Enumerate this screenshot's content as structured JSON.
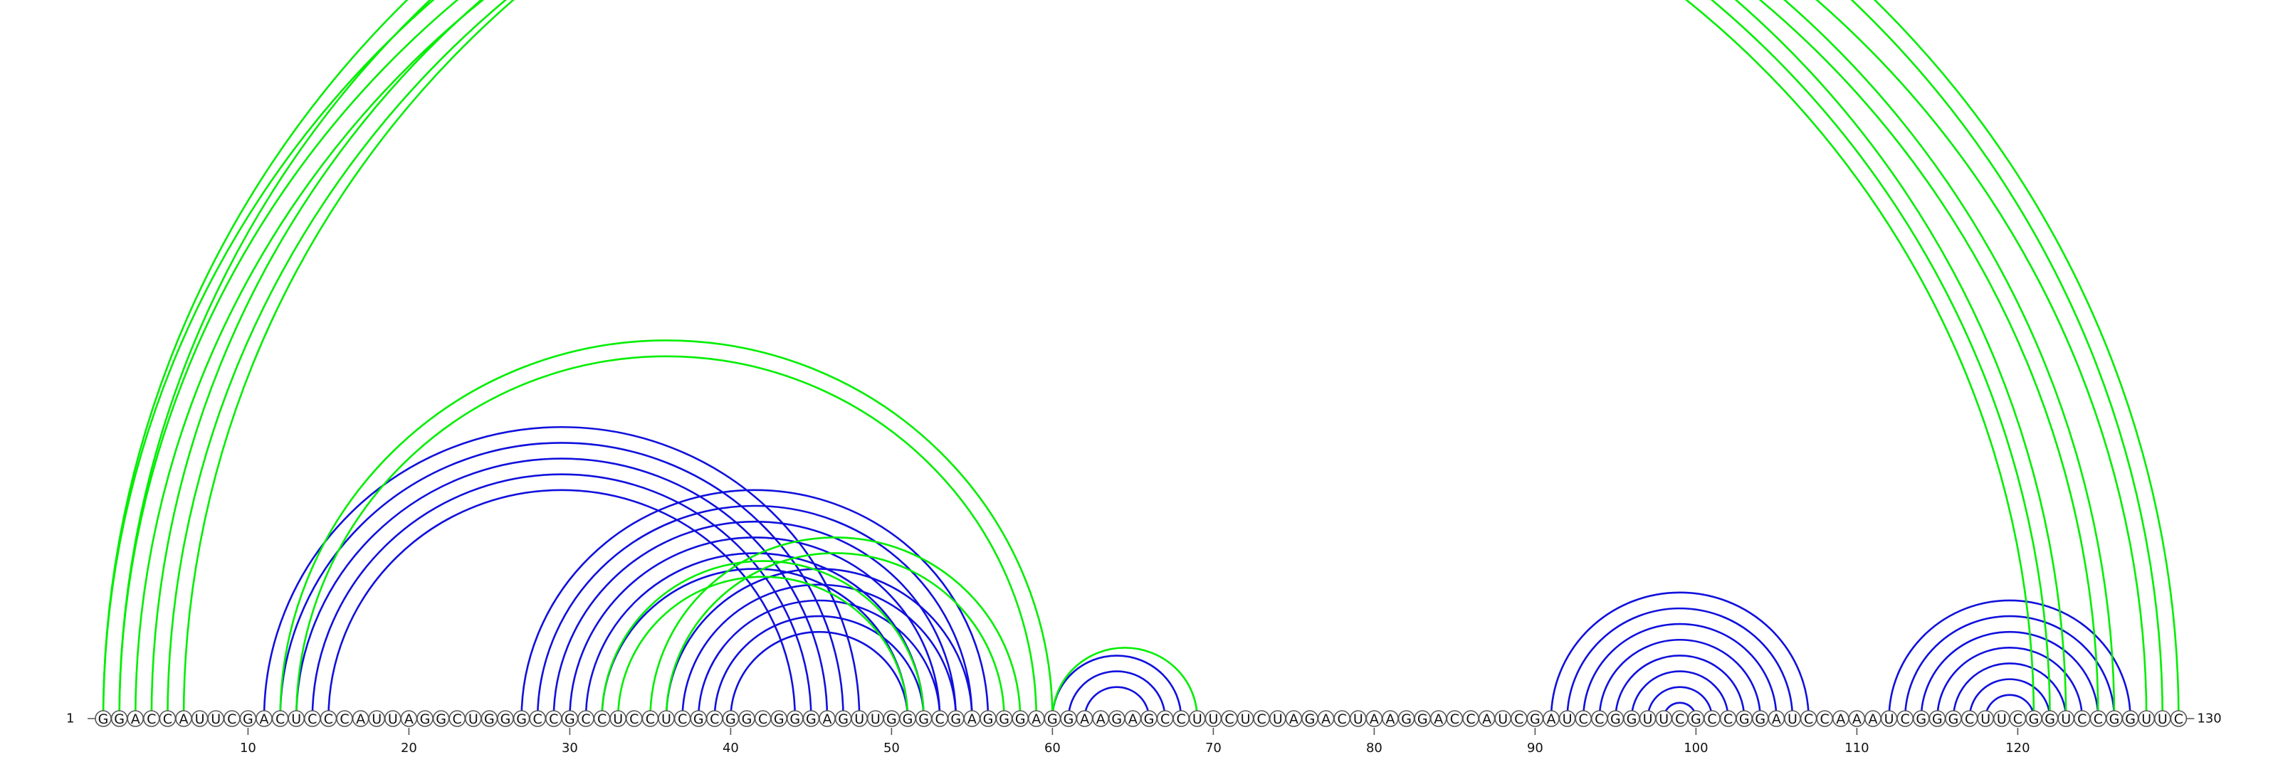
{
  "sequence": "GGACCAUUCGACUCCCAUUAGGCUGGGCCGCCUCCUCGCGGCGGGAGUUGGGCGAGGGAGGAAGAGCCUUCUCUAGACUAAGGACCAUCGAUCCGGUUCGCCGGAUCCAAAUCGGGCUUCGGUCCGGUUC",
  "start_label": "1",
  "end_label": "130",
  "ticks": [
    "10",
    "20",
    "30",
    "40",
    "50",
    "60",
    "70",
    "80",
    "90",
    "100",
    "110",
    "120"
  ],
  "colors": {
    "green": "#00ee00",
    "blue": "#1010dd",
    "circle_stroke": "#555555"
  },
  "green_pairs": [
    [
      1,
      123
    ],
    [
      2,
      122
    ],
    [
      3,
      121
    ],
    [
      4,
      126
    ],
    [
      5,
      125
    ],
    [
      6,
      128
    ],
    [
      12,
      60
    ],
    [
      13,
      59
    ],
    [
      32,
      52
    ],
    [
      33,
      51
    ],
    [
      35,
      58
    ],
    [
      36,
      57
    ],
    [
      60,
      69
    ],
    [
      1,
      130
    ],
    [
      2,
      129
    ]
  ],
  "blue_pairs": [
    [
      11,
      48
    ],
    [
      12,
      47
    ],
    [
      13,
      46
    ],
    [
      14,
      45
    ],
    [
      15,
      44
    ],
    [
      27,
      56
    ],
    [
      28,
      55
    ],
    [
      29,
      54
    ],
    [
      30,
      53
    ],
    [
      31,
      52
    ],
    [
      32,
      51
    ],
    [
      36,
      55
    ],
    [
      37,
      54
    ],
    [
      38,
      53
    ],
    [
      39,
      52
    ],
    [
      40,
      51
    ],
    [
      60,
      68
    ],
    [
      61,
      67
    ],
    [
      62,
      66
    ],
    [
      91,
      107
    ],
    [
      92,
      106
    ],
    [
      93,
      105
    ],
    [
      94,
      104
    ],
    [
      95,
      103
    ],
    [
      96,
      102
    ],
    [
      97,
      101
    ],
    [
      98,
      100
    ],
    [
      112,
      127
    ],
    [
      113,
      126
    ],
    [
      114,
      125
    ],
    [
      115,
      124
    ],
    [
      116,
      123
    ],
    [
      117,
      122
    ],
    [
      118,
      121
    ]
  ]
}
